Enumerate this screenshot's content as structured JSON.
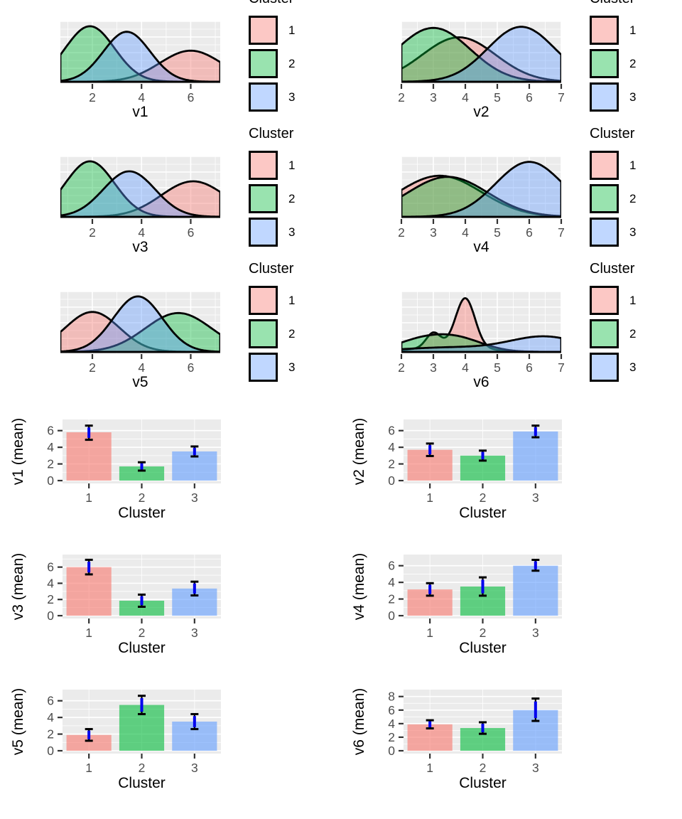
{
  "legend": {
    "title": "Cluster",
    "entries": [
      {
        "label": "1",
        "key": "c1"
      },
      {
        "label": "2",
        "key": "c2"
      },
      {
        "label": "3",
        "key": "c3"
      }
    ]
  },
  "cluster_colors": {
    "c1": "#F8766D",
    "c2": "#00BA38",
    "c3": "#619CFF"
  },
  "style": {
    "panel_bg": "#EBEBEB",
    "grid_color": "#FFFFFF",
    "tick_mark_color": "#333333",
    "tick_label_color": "#4D4D4D",
    "axis_title_color": "#000000",
    "curve_stroke": "#000000",
    "errorbar_color": "#000000",
    "errorbar_inner_color": "#0000EE",
    "density_fill_alpha": 0.4,
    "bar_fill_alpha": 0.6
  },
  "chart_data": {
    "density_plots": [
      {
        "id": "v1",
        "title": "v1",
        "type": "density",
        "x_domain": [
          0.7,
          7.2
        ],
        "x_ticks": [
          2,
          4,
          6
        ],
        "x_minor_ticks": [
          1,
          3,
          5,
          7
        ],
        "y_max": 1.05,
        "curves": [
          {
            "cluster": "1",
            "key": "c1",
            "components": [
              {
                "mean": 6.0,
                "sd": 1.25,
                "peak": 0.56
              }
            ]
          },
          {
            "cluster": "2",
            "key": "c2",
            "components": [
              {
                "mean": 1.9,
                "sd": 1.0,
                "peak": 1.0
              }
            ]
          },
          {
            "cluster": "3",
            "key": "c3",
            "components": [
              {
                "mean": 3.4,
                "sd": 0.95,
                "peak": 0.9
              }
            ]
          }
        ]
      },
      {
        "id": "v2",
        "title": "v2",
        "type": "density",
        "x_domain": [
          2,
          7
        ],
        "x_ticks": [
          2,
          3,
          4,
          5,
          6,
          7
        ],
        "x_minor_ticks": [
          2.5,
          3.5,
          4.5,
          5.5,
          6.5
        ],
        "y_max": 1.05,
        "curves": [
          {
            "cluster": "1",
            "key": "c1",
            "components": [
              {
                "mean": 3.8,
                "sd": 1.15,
                "peak": 0.8
              }
            ]
          },
          {
            "cluster": "2",
            "key": "c2",
            "components": [
              {
                "mean": 3.0,
                "sd": 1.15,
                "peak": 0.97
              }
            ]
          },
          {
            "cluster": "3",
            "key": "c3",
            "components": [
              {
                "mean": 5.75,
                "sd": 1.05,
                "peak": 0.99
              }
            ]
          }
        ]
      },
      {
        "id": "v3",
        "title": "v3",
        "type": "density",
        "x_domain": [
          0.7,
          7.2
        ],
        "x_ticks": [
          2,
          4,
          6
        ],
        "x_minor_ticks": [
          1,
          3,
          5,
          7
        ],
        "y_max": 1.05,
        "curves": [
          {
            "cluster": "1",
            "key": "c1",
            "components": [
              {
                "mean": 6.1,
                "sd": 1.3,
                "peak": 0.64
              }
            ]
          },
          {
            "cluster": "2",
            "key": "c2",
            "components": [
              {
                "mean": 1.9,
                "sd": 1.0,
                "peak": 1.0
              }
            ]
          },
          {
            "cluster": "3",
            "key": "c3",
            "components": [
              {
                "mean": 3.5,
                "sd": 1.05,
                "peak": 0.82
              }
            ]
          }
        ]
      },
      {
        "id": "v4",
        "title": "v4",
        "type": "density",
        "x_domain": [
          2,
          7
        ],
        "x_ticks": [
          2,
          3,
          4,
          5,
          6,
          7
        ],
        "x_minor_ticks": [
          2.5,
          3.5,
          4.5,
          5.5,
          6.5
        ],
        "y_max": 1.05,
        "curves": [
          {
            "cluster": "1",
            "key": "c1",
            "components": [
              {
                "mean": 3.2,
                "sd": 1.3,
                "peak": 0.74
              }
            ]
          },
          {
            "cluster": "2",
            "key": "c2",
            "components": [
              {
                "mean": 3.45,
                "sd": 1.25,
                "peak": 0.72
              }
            ]
          },
          {
            "cluster": "3",
            "key": "c3",
            "components": [
              {
                "mean": 6.0,
                "sd": 1.05,
                "peak": 0.99
              }
            ]
          }
        ]
      },
      {
        "id": "v5",
        "title": "v5",
        "type": "density",
        "x_domain": [
          0.7,
          7.2
        ],
        "x_ticks": [
          2,
          4,
          6
        ],
        "x_minor_ticks": [
          1,
          3,
          5,
          7
        ],
        "y_max": 1.05,
        "curves": [
          {
            "cluster": "1",
            "key": "c1",
            "components": [
              {
                "mean": 2.0,
                "sd": 1.1,
                "peak": 0.72
              }
            ]
          },
          {
            "cluster": "2",
            "key": "c2",
            "components": [
              {
                "mean": 5.5,
                "sd": 1.35,
                "peak": 0.7
              }
            ]
          },
          {
            "cluster": "3",
            "key": "c3",
            "components": [
              {
                "mean": 3.85,
                "sd": 1.0,
                "peak": 1.0
              }
            ]
          }
        ]
      },
      {
        "id": "v6",
        "title": "v6",
        "type": "density",
        "x_domain": [
          2,
          7
        ],
        "x_ticks": [
          2,
          3,
          4,
          5,
          6,
          7
        ],
        "x_minor_ticks": [
          2.5,
          3.5,
          4.5,
          5.5,
          6.5
        ],
        "y_max": 1.05,
        "curves": [
          {
            "cluster": "1",
            "key": "c1",
            "components": [
              {
                "mean": 3.0,
                "sd": 0.22,
                "peak": 0.26
              },
              {
                "mean": 4.0,
                "sd": 0.3,
                "peak": 0.88
              },
              {
                "mean": 3.5,
                "sd": 1.0,
                "peak": 0.1
              }
            ]
          },
          {
            "cluster": "2",
            "key": "c2",
            "components": [
              {
                "mean": 2.6,
                "sd": 0.8,
                "peak": 0.2
              },
              {
                "mean": 3.8,
                "sd": 0.8,
                "peak": 0.22
              }
            ]
          },
          {
            "cluster": "3",
            "key": "c3",
            "components": [
              {
                "mean": 6.5,
                "sd": 1.1,
                "peak": 0.27
              },
              {
                "mean": 3.5,
                "sd": 1.5,
                "peak": 0.08
              }
            ]
          }
        ]
      }
    ],
    "bar_plots": [
      {
        "id": "v1_mean",
        "type": "bar",
        "ylabel": "v1 (mean)",
        "xlabel": "Cluster",
        "categories": [
          "1",
          "2",
          "3"
        ],
        "means": [
          5.8,
          1.7,
          3.5
        ],
        "err_low": [
          4.9,
          1.2,
          2.9
        ],
        "err_high": [
          6.6,
          2.2,
          4.1
        ],
        "y_ticks": [
          0,
          2,
          4,
          6
        ],
        "y_max": 7.0
      },
      {
        "id": "v2_mean",
        "type": "bar",
        "ylabel": "v2 (mean)",
        "xlabel": "Cluster",
        "categories": [
          "1",
          "2",
          "3"
        ],
        "means": [
          3.7,
          3.0,
          5.9
        ],
        "err_low": [
          2.95,
          2.4,
          5.2
        ],
        "err_high": [
          4.45,
          3.6,
          6.6
        ],
        "y_ticks": [
          0,
          2,
          4,
          6
        ],
        "y_max": 7.0
      },
      {
        "id": "v3_mean",
        "type": "bar",
        "ylabel": "v3 (mean)",
        "xlabel": "Cluster",
        "categories": [
          "1",
          "2",
          "3"
        ],
        "means": [
          6.0,
          1.85,
          3.35
        ],
        "err_low": [
          5.1,
          1.1,
          2.5
        ],
        "err_high": [
          6.9,
          2.6,
          4.2
        ],
        "y_ticks": [
          0,
          2,
          4,
          6
        ],
        "y_max": 7.2
      },
      {
        "id": "v4_mean",
        "type": "bar",
        "ylabel": "v4 (mean)",
        "xlabel": "Cluster",
        "categories": [
          "1",
          "2",
          "3"
        ],
        "means": [
          3.15,
          3.5,
          6.0
        ],
        "err_low": [
          2.4,
          2.4,
          5.4
        ],
        "err_high": [
          3.9,
          4.6,
          6.7
        ],
        "y_ticks": [
          0,
          2,
          4,
          6
        ],
        "y_max": 7.0
      },
      {
        "id": "v5_mean",
        "type": "bar",
        "ylabel": "v5 (mean)",
        "xlabel": "Cluster",
        "categories": [
          "1",
          "2",
          "3"
        ],
        "means": [
          1.9,
          5.5,
          3.5
        ],
        "err_low": [
          1.2,
          4.4,
          2.6
        ],
        "err_high": [
          2.6,
          6.6,
          4.4
        ],
        "y_ticks": [
          0,
          2,
          4,
          6
        ],
        "y_max": 7.0
      },
      {
        "id": "v6_mean",
        "type": "bar",
        "ylabel": "v6 (mean)",
        "xlabel": "Cluster",
        "categories": [
          "1",
          "2",
          "3"
        ],
        "means": [
          3.9,
          3.35,
          6.0
        ],
        "err_low": [
          3.3,
          2.5,
          4.4
        ],
        "err_high": [
          4.5,
          4.2,
          7.7
        ],
        "y_ticks": [
          0,
          2,
          4,
          6,
          8
        ],
        "y_max": 8.6
      }
    ]
  }
}
